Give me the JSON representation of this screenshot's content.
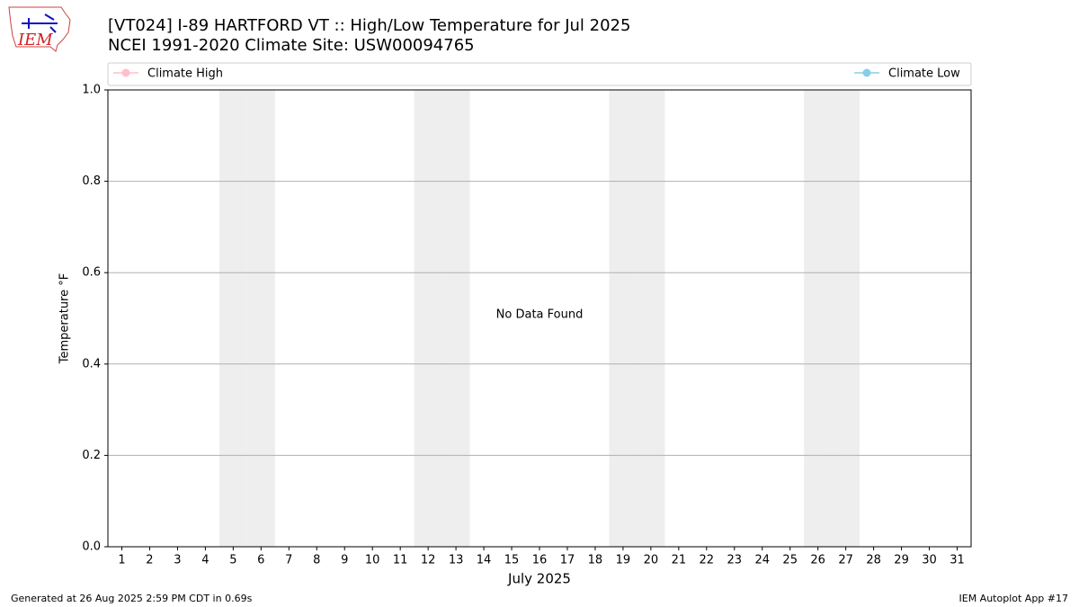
{
  "logo": {
    "text": "IEM"
  },
  "chart_data": {
    "type": "line",
    "title": "[VT024] I-89 HARTFORD  VT :: High/Low Temperature for Jul 2025",
    "subtitle": "NCEI 1991-2020 Climate Site: USW00094765",
    "x_label": "July 2025",
    "y_label": "Temperature °F",
    "annotation": "No Data Found",
    "x": [
      1,
      2,
      3,
      4,
      5,
      6,
      7,
      8,
      9,
      10,
      11,
      12,
      13,
      14,
      15,
      16,
      17,
      18,
      19,
      20,
      21,
      22,
      23,
      24,
      25,
      26,
      27,
      28,
      29,
      30,
      31
    ],
    "series": [
      {
        "name": "Climate High",
        "color": "#ffc0cb",
        "values": [
          null,
          null,
          null,
          null,
          null,
          null,
          null,
          null,
          null,
          null,
          null,
          null,
          null,
          null,
          null,
          null,
          null,
          null,
          null,
          null,
          null,
          null,
          null,
          null,
          null,
          null,
          null,
          null,
          null,
          null,
          null
        ]
      },
      {
        "name": "Climate Low",
        "color": "#87ceeb",
        "values": [
          null,
          null,
          null,
          null,
          null,
          null,
          null,
          null,
          null,
          null,
          null,
          null,
          null,
          null,
          null,
          null,
          null,
          null,
          null,
          null,
          null,
          null,
          null,
          null,
          null,
          null,
          null,
          null,
          null,
          null,
          null
        ]
      }
    ],
    "shaded_days": [
      5,
      6,
      12,
      13,
      19,
      20,
      26,
      27
    ],
    "xlim": [
      0.5,
      31.5
    ],
    "xticks": [
      1,
      2,
      3,
      4,
      5,
      6,
      7,
      8,
      9,
      10,
      11,
      12,
      13,
      14,
      15,
      16,
      17,
      18,
      19,
      20,
      21,
      22,
      23,
      24,
      25,
      26,
      27,
      28,
      29,
      30,
      31
    ],
    "ylim": [
      0,
      1
    ],
    "yticks": [
      {
        "value": 0,
        "label": "0.0"
      },
      {
        "value": 0.2,
        "label": "0.2"
      },
      {
        "value": 0.4,
        "label": "0.4"
      },
      {
        "value": 0.6,
        "label": "0.6"
      },
      {
        "value": 0.8,
        "label": "0.8"
      },
      {
        "value": 1,
        "label": "1.0"
      }
    ],
    "grid": true,
    "legend": "top"
  },
  "footer": {
    "left": "Generated at 26 Aug 2025 2:59 PM CDT in 0.69s",
    "right": "IEM Autoplot App #17"
  }
}
